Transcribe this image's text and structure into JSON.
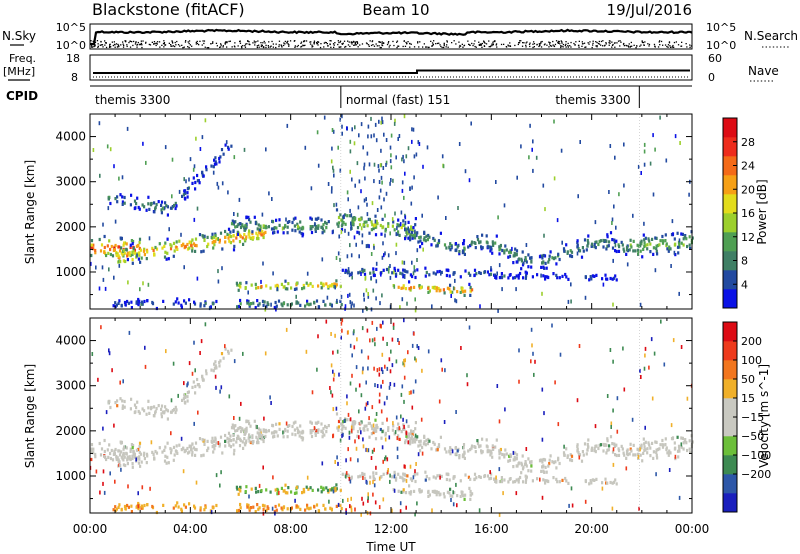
{
  "header": {
    "station": "Blackstone (fitACF)",
    "beam": "Beam 10",
    "date": "19/Jul/2016"
  },
  "nsky": {
    "left_label": "N.Sky",
    "right_label": "N.Search",
    "tick_top_left": "10^5",
    "tick_bot_left": "10^0",
    "tick_top_right": "10^5",
    "tick_bot_right": "10^0"
  },
  "freq": {
    "left_label": "Freq.",
    "unit": "[MHz]",
    "right_label": "Nave",
    "tick_top_left": "18",
    "tick_bot_left": "8",
    "tick_top_right": "60",
    "tick_bot_right": "0"
  },
  "cpid": {
    "label": "CPID",
    "segments": [
      {
        "name": "themis 3300",
        "start_h": 0.0,
        "end_h": 10.0
      },
      {
        "name": "normal (fast) 151",
        "start_h": 10.0,
        "end_h": 21.9
      },
      {
        "name": "themis 3300",
        "start_h": 21.9,
        "end_h": 24.0
      }
    ]
  },
  "chart_data": [
    {
      "type": "heatmap",
      "panel": "power",
      "ylabel": "Slant Range [km]",
      "xlabel": "",
      "x_ticks": [
        "00:00",
        "04:00",
        "08:00",
        "12:00",
        "16:00",
        "20:00",
        "00:00"
      ],
      "x_tick_hours": [
        0,
        4,
        8,
        12,
        16,
        20,
        24
      ],
      "xlim_hours": [
        0,
        24
      ],
      "ylim": [
        180,
        4500
      ],
      "y_ticks": [
        1000,
        2000,
        3000,
        4000
      ],
      "colorbar": {
        "label": "Power [dB]",
        "ticks": [
          4,
          8,
          12,
          16,
          20,
          24,
          28
        ],
        "range": [
          0,
          32
        ],
        "colors": [
          "#0b12e6",
          "#224aa0",
          "#3f7f65",
          "#4f9f53",
          "#9ccf2c",
          "#e3dc1c",
          "#f6a016",
          "#f46a18",
          "#ee2c1c",
          "#dd0b14"
        ]
      },
      "features": [
        {
          "name": "main echo band",
          "range_km_at_00": 1500,
          "range_km_at_06": 1900,
          "range_km_at_12": 2100,
          "range_km_at_16": 1500,
          "range_km_at_24": 1650,
          "peak_power_db": 28
        },
        {
          "name": "upper arc",
          "range_km_at_01": 2800,
          "range_km_at_03": 2400,
          "range_km_at_05": 3900
        },
        {
          "name": "near range band",
          "start_h": 5.8,
          "end_h": 10.0,
          "range_km": 650
        },
        {
          "name": "near range band",
          "start_h": 12.0,
          "end_h": 15.0,
          "range_km": 700
        }
      ]
    },
    {
      "type": "heatmap",
      "panel": "velocity",
      "ylabel": "Slant Range [km]",
      "xlabel": "Time UT",
      "x_ticks": [
        "00:00",
        "04:00",
        "08:00",
        "12:00",
        "16:00",
        "20:00",
        "00:00"
      ],
      "x_tick_hours": [
        0,
        4,
        8,
        12,
        16,
        20,
        24
      ],
      "xlim_hours": [
        0,
        24
      ],
      "ylim": [
        180,
        4500
      ],
      "y_ticks": [
        1000,
        2000,
        3000,
        4000
      ],
      "colorbar": {
        "label": "Velocity [m s^-1]",
        "ticks": [
          "200",
          "100",
          "50",
          "15",
          "−15",
          "−50",
          "−100",
          "−200"
        ],
        "colors": [
          "#1a1fbd",
          "#2d57a8",
          "#3d8a52",
          "#6cbf3a",
          "#c9c9c1",
          "#c9c9c1",
          "#f0b02a",
          "#f2761e",
          "#ee3a1c",
          "#dd0b14"
        ]
      }
    }
  ]
}
